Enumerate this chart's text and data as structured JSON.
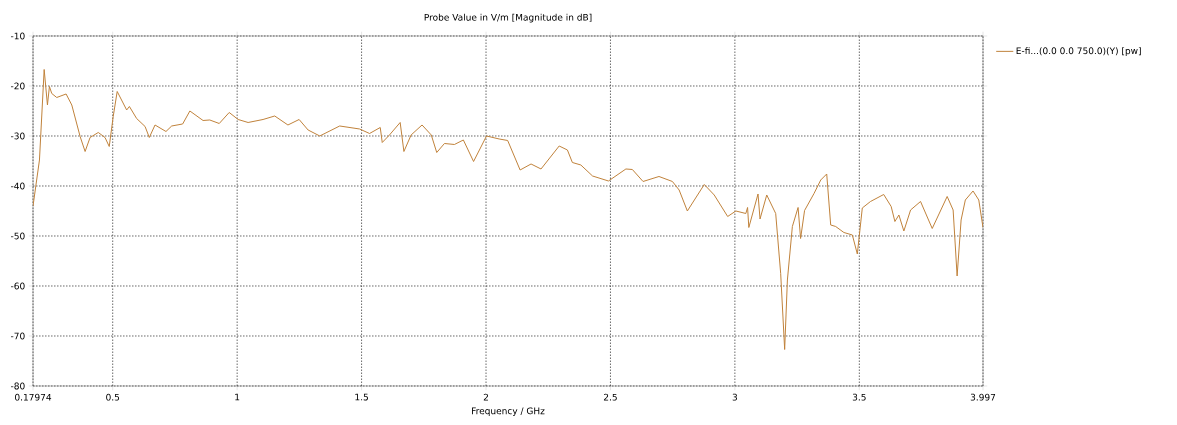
{
  "chart_data": {
    "type": "line",
    "title": "Probe Value in V/m [Magnitude in dB]",
    "xlabel": "Frequency / GHz",
    "xlim": [
      0.17974,
      3.997
    ],
    "ylim": [
      -80,
      -10
    ],
    "xticks": [
      0.17974,
      0.5,
      1,
      1.5,
      2,
      2.5,
      3,
      3.5,
      3.997
    ],
    "yticks": [
      -80,
      -70,
      -60,
      -50,
      -40,
      -30,
      -20,
      -10
    ],
    "grid": true,
    "legend": "top right",
    "line_style": "solid",
    "series": [
      {
        "name": "E-fi...(0.0 0.0 750.0)(Y) [pw]",
        "color": "#c0823a",
        "x": [
          0.17974,
          0.2056,
          0.2245,
          0.2377,
          0.2457,
          0.255,
          0.275,
          0.3127,
          0.3355,
          0.369,
          0.389,
          0.409,
          0.442,
          0.469,
          0.486,
          0.502,
          0.518,
          0.556,
          0.567,
          0.596,
          0.63,
          0.647,
          0.67,
          0.714,
          0.737,
          0.781,
          0.81,
          0.863,
          0.89,
          0.928,
          0.968,
          1.004,
          1.044,
          1.104,
          1.151,
          1.204,
          1.249,
          1.285,
          1.332,
          1.412,
          1.492,
          1.532,
          1.575,
          1.583,
          1.612,
          1.655,
          1.67,
          1.699,
          1.743,
          1.78,
          1.802,
          1.833,
          1.873,
          1.909,
          1.95,
          2.002,
          2.053,
          2.087,
          2.137,
          2.181,
          2.221,
          2.294,
          2.327,
          2.347,
          2.381,
          2.428,
          2.492,
          2.562,
          2.588,
          2.631,
          2.695,
          2.749,
          2.776,
          2.809,
          2.877,
          2.917,
          2.971,
          3.004,
          3.044,
          3.051,
          3.056,
          3.093,
          3.101,
          3.128,
          3.164,
          3.184,
          3.2,
          3.211,
          3.231,
          3.254,
          3.264,
          3.28,
          3.318,
          3.345,
          3.369,
          3.385,
          3.405,
          3.438,
          3.472,
          3.492,
          3.512,
          3.545,
          3.598,
          3.628,
          3.643,
          3.659,
          3.679,
          3.706,
          3.746,
          3.793,
          3.853,
          3.877,
          3.893,
          3.909,
          3.926,
          3.957,
          3.98,
          3.997
        ],
        "values": [
          -44,
          -34.8,
          -16.7,
          -23.8,
          -20.1,
          -21.5,
          -22.3,
          -21.6,
          -23.8,
          -30.1,
          -33.1,
          -30.3,
          -29.3,
          -30.3,
          -32.1,
          -26.1,
          -21.1,
          -24.8,
          -24.1,
          -26.5,
          -28.1,
          -30.3,
          -27.8,
          -29.1,
          -28,
          -27.6,
          -25,
          -26.9,
          -26.8,
          -27.5,
          -25.3,
          -26.7,
          -27.3,
          -26.7,
          -26,
          -27.8,
          -26.7,
          -28.8,
          -30,
          -28,
          -28.6,
          -29.5,
          -28.3,
          -31.3,
          -29.8,
          -27.3,
          -33.1,
          -29.8,
          -27.8,
          -29.8,
          -33.3,
          -31.5,
          -31.7,
          -30.8,
          -35.1,
          -30,
          -30.6,
          -30.9,
          -36.8,
          -35.6,
          -36.6,
          -32,
          -32.8,
          -35.3,
          -35.8,
          -38,
          -39,
          -36.6,
          -36.7,
          -39.1,
          -38.1,
          -39.1,
          -40.8,
          -45,
          -39.7,
          -41.8,
          -46.1,
          -45,
          -45.5,
          -44.3,
          -48.3,
          -41.6,
          -46.6,
          -41.8,
          -45.5,
          -57.5,
          -72.7,
          -58.8,
          -48.1,
          -44.3,
          -50.5,
          -44.9,
          -41.5,
          -38.8,
          -37.6,
          -47.8,
          -48.1,
          -49.3,
          -49.8,
          -53.6,
          -44.4,
          -43.1,
          -41.7,
          -44.1,
          -47.1,
          -45.8,
          -49,
          -44.8,
          -43.1,
          -48.5,
          -42.1,
          -44.8,
          -58,
          -46.8,
          -42.8,
          -41,
          -42.8,
          -48.3
        ]
      }
    ]
  }
}
